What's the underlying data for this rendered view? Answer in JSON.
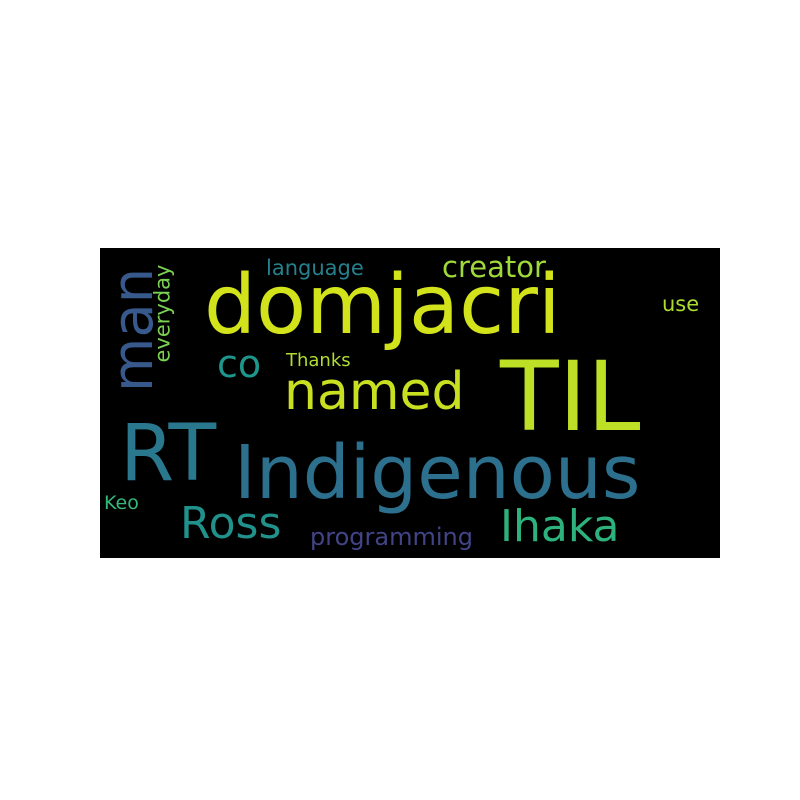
{
  "word_cloud": {
    "background": "#000000",
    "words": [
      {
        "key": "domjacri",
        "text": "domjacri",
        "color": "#d2e21b"
      },
      {
        "key": "til",
        "text": "TIL",
        "color": "#bddf26"
      },
      {
        "key": "indigenous",
        "text": "Indigenous",
        "color": "#2d708e"
      },
      {
        "key": "rt",
        "text": "RT",
        "color": "#2a788e"
      },
      {
        "key": "man",
        "text": "man",
        "color": "#38598c"
      },
      {
        "key": "named",
        "text": "named",
        "color": "#c8e020"
      },
      {
        "key": "ross",
        "text": "Ross",
        "color": "#21918c"
      },
      {
        "key": "ihaka",
        "text": "Ihaka",
        "color": "#2db27d"
      },
      {
        "key": "co",
        "text": "co",
        "color": "#1f968b"
      },
      {
        "key": "creator",
        "text": "creator",
        "color": "#9fda3a"
      },
      {
        "key": "language",
        "text": "language",
        "color": "#26818e"
      },
      {
        "key": "everyday",
        "text": "everyday",
        "color": "#7ad151"
      },
      {
        "key": "thanks",
        "text": "Thanks",
        "color": "#b0dd2f"
      },
      {
        "key": "use",
        "text": "use",
        "color": "#addc30"
      },
      {
        "key": "keo",
        "text": "Keo",
        "color": "#35b779"
      },
      {
        "key": "programming",
        "text": "programming",
        "color": "#414487"
      }
    ]
  }
}
